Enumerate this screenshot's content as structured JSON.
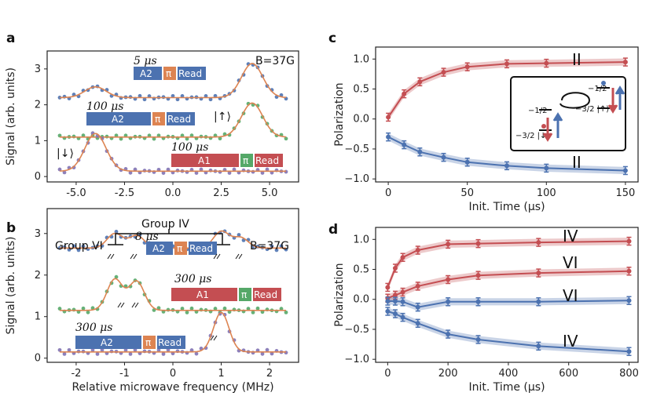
{
  "chart_data": [
    {
      "panel": "a",
      "type": "scatter",
      "xlabel": "",
      "ylabel": "Signal (arb. units)",
      "xlim": [
        -6.5,
        6.5
      ],
      "ylim": [
        -0.15,
        3.5
      ],
      "xticks": [
        "-5.0",
        "-2.5",
        "0.0",
        "2.5",
        "5.0"
      ],
      "yticks": [
        "0",
        "1",
        "2",
        "3"
      ],
      "field_label": "B=37G",
      "series": [
        {
          "name": "A2 5 µs",
          "color": "#4c72b0",
          "baseline": 2.2,
          "peaks": [
            [
              -4.0,
              0.3
            ],
            [
              4.1,
              0.95
            ]
          ]
        },
        {
          "name": "A2 100 µs",
          "color": "#55a868",
          "baseline": 1.1,
          "peaks": [
            [
              4.1,
              0.95
            ]
          ]
        },
        {
          "name": "A1 100 µs",
          "color": "#8172b2",
          "baseline": 0.15,
          "peaks": [
            [
              -4.0,
              1.05
            ]
          ]
        }
      ],
      "pulse_labels": [
        {
          "time": "5 μs",
          "pulse": "A2",
          "pi": "π",
          "read": "Read"
        },
        {
          "time": "100 μs",
          "pulse": "A2",
          "pi": "π",
          "read": "Read"
        },
        {
          "time": "100 μs",
          "pulse": "A1",
          "pi": "π",
          "read": "Read"
        }
      ],
      "state_labels": [
        "|↑⟩",
        "|↓⟩"
      ]
    },
    {
      "panel": "b",
      "type": "scatter",
      "xlabel": "Relative microwave frequency (MHz)",
      "ylabel": "Signal (arb. units)",
      "xlim": [
        -2.6,
        2.6
      ],
      "ylim": [
        -0.1,
        3.6
      ],
      "xticks": [
        "-2",
        "-1",
        "0",
        "1",
        "2"
      ],
      "yticks": [
        "0",
        "1",
        "2",
        "3"
      ],
      "field_label": "B=37G",
      "group_labels": [
        "Group IV",
        "Group VI"
      ],
      "series": [
        {
          "name": "A2 8 µs",
          "color": "#4c72b0",
          "baseline": 2.65,
          "peaks": [
            [
              -1.2,
              0.35
            ],
            [
              -0.75,
              0.3
            ],
            [
              1.0,
              0.4
            ],
            [
              1.4,
              0.25
            ]
          ]
        },
        {
          "name": "A1 300 µs",
          "color": "#55a868",
          "baseline": 1.15,
          "peaks": [
            [
              -1.2,
              0.75
            ],
            [
              -0.75,
              0.7
            ]
          ]
        },
        {
          "name": "A2 300 µs",
          "color": "#8172b2",
          "baseline": 0.15,
          "peaks": [
            [
              1.0,
              0.95
            ]
          ]
        }
      ],
      "pulse_labels": [
        {
          "time": "8 μs",
          "pulse": "A2",
          "pi": "π",
          "read": "Read"
        },
        {
          "time": "300 μs",
          "pulse": "A1",
          "pi": "π",
          "read": "Read"
        },
        {
          "time": "300 μs",
          "pulse": "A2",
          "pi": "π",
          "read": "Read"
        }
      ]
    },
    {
      "panel": "c",
      "type": "line",
      "xlabel": "Init. Time (μs)",
      "ylabel": "Polarization",
      "xlim": [
        -8,
        158
      ],
      "ylim": [
        -1.05,
        1.2
      ],
      "xticks": [
        "0",
        "50",
        "100",
        "150"
      ],
      "yticks": [
        "−1.0",
        "−0.5",
        "0.0",
        "0.5",
        "1.0"
      ],
      "series_labels": [
        "II",
        "II"
      ],
      "series": [
        {
          "name": "II (red)",
          "color": "#c44e52",
          "x": [
            0,
            10,
            20,
            35,
            50,
            75,
            100,
            150
          ],
          "y": [
            0.03,
            0.42,
            0.62,
            0.78,
            0.87,
            0.92,
            0.93,
            0.95
          ]
        },
        {
          "name": "II (blue)",
          "color": "#4c72b0",
          "x": [
            0,
            10,
            20,
            35,
            50,
            75,
            100,
            150
          ],
          "y": [
            -0.3,
            -0.43,
            -0.55,
            -0.64,
            -0.72,
            -0.78,
            -0.82,
            -0.86
          ]
        }
      ],
      "inset_labels": [
        "−1/2",
        "−3/2 |↓⟩",
        "−1/2",
        "−3/2 |↑⟩"
      ]
    },
    {
      "panel": "d",
      "type": "line",
      "xlabel": "Init. Time (μs)",
      "ylabel": "Polarization",
      "xlim": [
        -40,
        830
      ],
      "ylim": [
        -1.05,
        1.2
      ],
      "xticks": [
        "0",
        "200",
        "400",
        "600",
        "800"
      ],
      "yticks": [
        "−1.0",
        "−0.5",
        "0.0",
        "0.5",
        "1.0"
      ],
      "series_labels": [
        "IV",
        "VI",
        "VI",
        "IV"
      ],
      "series": [
        {
          "name": "IV (red)",
          "color": "#c44e52",
          "x": [
            0,
            25,
            50,
            100,
            200,
            300,
            500,
            800
          ],
          "y": [
            0.2,
            0.52,
            0.7,
            0.82,
            0.92,
            0.93,
            0.95,
            0.97
          ]
        },
        {
          "name": "VI (red)",
          "color": "#c44e52",
          "x": [
            0,
            25,
            50,
            100,
            200,
            300,
            500,
            800
          ],
          "y": [
            0.02,
            0.07,
            0.12,
            0.22,
            0.33,
            0.4,
            0.44,
            0.47
          ]
        },
        {
          "name": "VI (blue)",
          "color": "#4c72b0",
          "x": [
            0,
            25,
            50,
            100,
            200,
            300,
            500,
            800
          ],
          "y": [
            -0.03,
            -0.03,
            -0.04,
            -0.13,
            -0.04,
            -0.04,
            -0.04,
            -0.02
          ]
        },
        {
          "name": "IV (blue)",
          "color": "#4c72b0",
          "x": [
            0,
            25,
            50,
            100,
            200,
            300,
            500,
            800
          ],
          "y": [
            -0.2,
            -0.24,
            -0.3,
            -0.4,
            -0.58,
            -0.67,
            -0.78,
            -0.87
          ]
        }
      ]
    }
  ],
  "colors": {
    "red": "#c44e52",
    "blue": "#4c72b0",
    "green": "#55a868",
    "purple": "#8172b2",
    "orange": "#dd8452",
    "a1": "#c44e52",
    "a2": "#4c72b0"
  }
}
